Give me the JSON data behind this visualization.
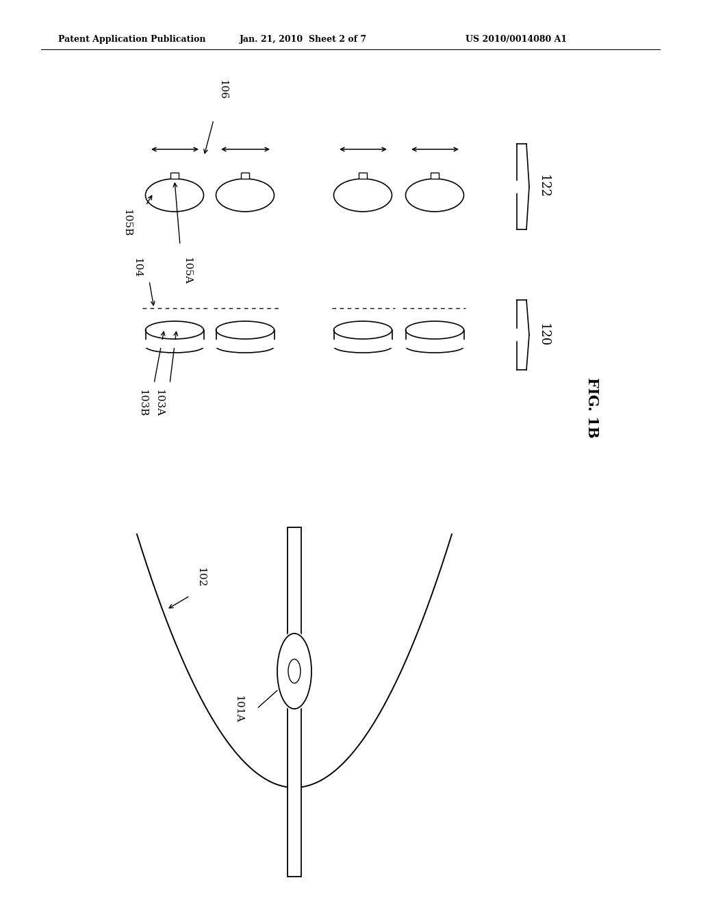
{
  "header_left": "Patent Application Publication",
  "header_center": "Jan. 21, 2010  Sheet 2 of 7",
  "header_right": "US 2010/0014080 A1",
  "fig1b_label": "FIG. 1B",
  "bg_color": "#ffffff",
  "line_color": "#000000",
  "label_106": "106",
  "label_105B": "105B",
  "label_105A": "105A",
  "label_104": "104",
  "label_103B": "103B",
  "label_103A": "103A",
  "label_122": "122",
  "label_120": "120",
  "label_102": "102",
  "label_101A": "101A"
}
